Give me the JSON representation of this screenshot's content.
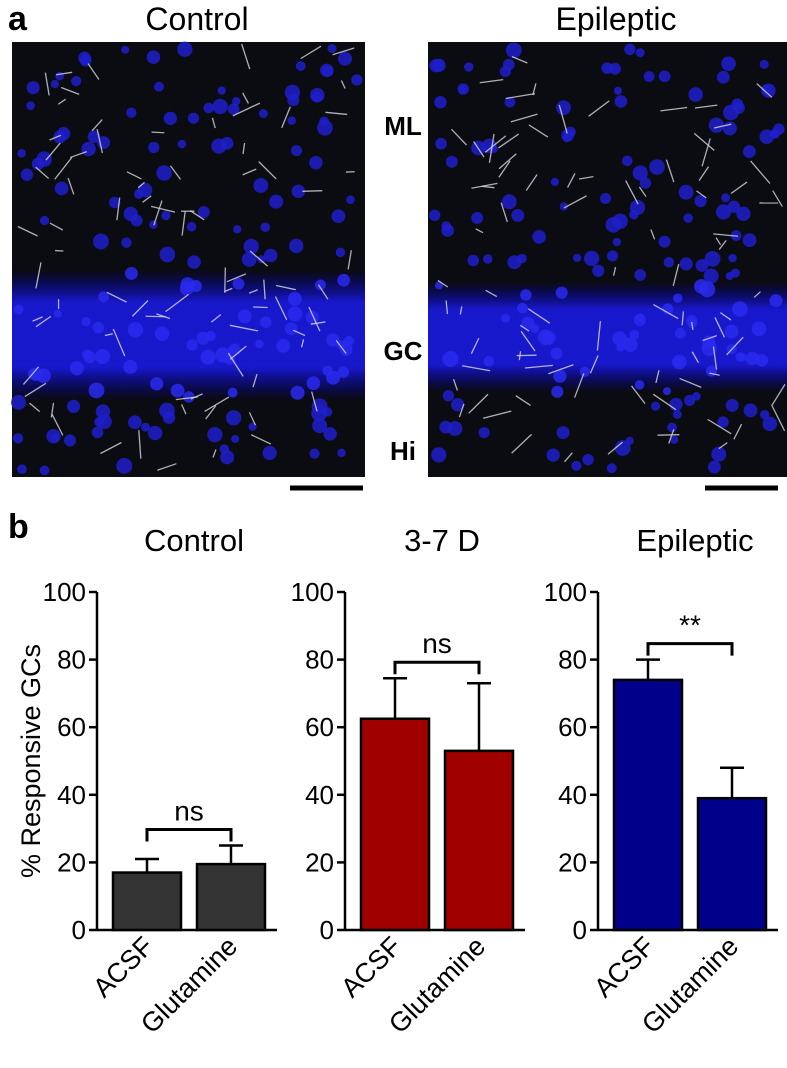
{
  "panel_a": {
    "label": "a",
    "images": [
      {
        "title": "Control"
      },
      {
        "title": "Epileptic"
      }
    ],
    "layers": [
      "ML",
      "GC",
      "Hi"
    ]
  },
  "panel_b": {
    "label": "b"
  },
  "chart_data": [
    {
      "type": "bar",
      "title": "Control",
      "ylabel": "% Responsive GCs",
      "categories": [
        "ACSF",
        "Glutamine"
      ],
      "values": [
        17,
        19.5
      ],
      "errors": [
        4,
        5.5
      ],
      "color": "#333333",
      "ylim": [
        0,
        100
      ],
      "yticks": [
        0,
        20,
        40,
        60,
        80,
        100
      ],
      "annotation": "ns"
    },
    {
      "type": "bar",
      "title": "3-7 D",
      "categories": [
        "ACSF",
        "Glutamine"
      ],
      "values": [
        62.5,
        53
      ],
      "errors": [
        12,
        20
      ],
      "color": "#a00000",
      "ylim": [
        0,
        100
      ],
      "yticks": [
        0,
        20,
        40,
        60,
        80,
        100
      ],
      "annotation": "ns"
    },
    {
      "type": "bar",
      "title": "Epileptic",
      "categories": [
        "ACSF",
        "Glutamine"
      ],
      "values": [
        74,
        39
      ],
      "errors": [
        6,
        9
      ],
      "color": "#00008b",
      "ylim": [
        0,
        100
      ],
      "yticks": [
        0,
        20,
        40,
        60,
        80,
        100
      ],
      "annotation": "**"
    }
  ]
}
